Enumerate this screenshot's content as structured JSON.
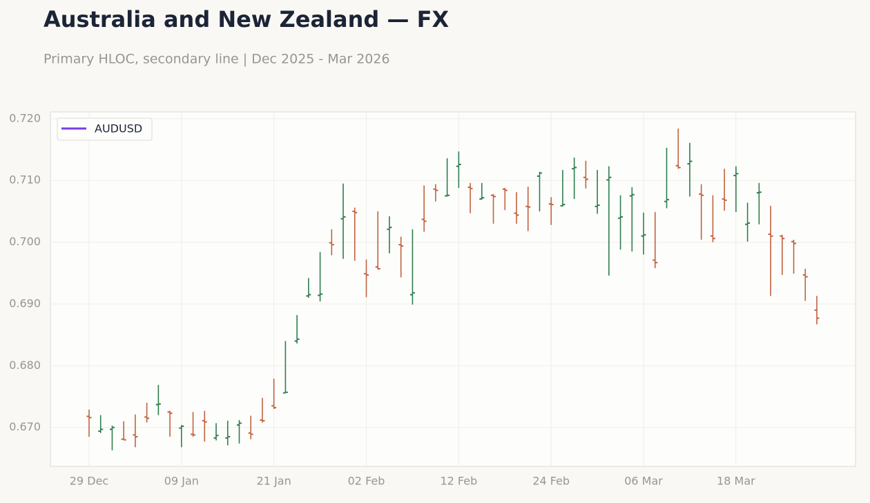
{
  "chart_data": {
    "type": "ohlc",
    "title": "Australia and New Zealand — FX",
    "subtitle": "Primary HLOC, secondary line | Dec 2025 - Mar 2026",
    "categories": [
      "29 Dec",
      null,
      null,
      null,
      null,
      null,
      null,
      null,
      "09 Jan",
      null,
      null,
      null,
      null,
      null,
      null,
      null,
      "21 Jan",
      null,
      null,
      null,
      null,
      null,
      null,
      null,
      "02 Feb",
      null,
      null,
      null,
      null,
      null,
      null,
      null,
      "12 Feb",
      null,
      null,
      null,
      null,
      null,
      null,
      null,
      "24 Feb",
      null,
      null,
      null,
      null,
      null,
      null,
      null,
      "06 Mar",
      null,
      null,
      null,
      null,
      null,
      null,
      null,
      "18 Mar",
      null,
      null,
      null,
      null,
      null,
      null,
      null
    ],
    "series": [
      {
        "name": "AUDUSD",
        "color": "#7c3aed",
        "up_color": "#2e7d4f",
        "down_color": "#c0623e",
        "open": [
          0.6718,
          0.6694,
          0.6697,
          0.6681,
          0.6688,
          0.6717,
          0.6737,
          0.6725,
          0.6699,
          0.6689,
          0.6711,
          0.6683,
          0.6683,
          0.6704,
          0.6691,
          0.6712,
          0.6735,
          0.6756,
          0.684,
          0.6913,
          0.6914,
          0.6999,
          0.7038,
          0.705,
          0.6949,
          0.696,
          0.7021,
          0.6996,
          0.6915,
          0.7037,
          0.7086,
          0.7075,
          0.7123,
          0.7089,
          0.707,
          0.7076,
          0.7086,
          0.7047,
          0.7058,
          0.7107,
          0.7062,
          0.7059,
          0.7119,
          0.7105,
          0.7058,
          0.7101,
          0.7039,
          0.7075,
          0.701,
          0.6971,
          0.7066,
          0.7124,
          0.7127,
          0.7078,
          0.701,
          0.707,
          0.7108,
          0.7029,
          0.708,
          0.7013,
          0.701,
          0.7001,
          0.6947,
          0.689
        ],
        "high": [
          0.6729,
          0.672,
          0.6703,
          0.671,
          0.6721,
          0.674,
          0.6769,
          0.6727,
          0.6704,
          0.6725,
          0.6727,
          0.6707,
          0.6711,
          0.6712,
          0.6719,
          0.6748,
          0.6779,
          0.684,
          0.6882,
          0.6942,
          0.6984,
          0.7021,
          0.7095,
          0.7056,
          0.6972,
          0.705,
          0.7042,
          0.7009,
          0.7021,
          0.7092,
          0.7094,
          0.7136,
          0.7147,
          0.7096,
          0.7096,
          0.7078,
          0.7088,
          0.7081,
          0.709,
          0.7114,
          0.7073,
          0.7117,
          0.7137,
          0.7132,
          0.7117,
          0.7123,
          0.7076,
          0.7089,
          0.7048,
          0.7049,
          0.7153,
          0.7184,
          0.7161,
          0.7094,
          0.7076,
          0.7119,
          0.7123,
          0.7064,
          0.7096,
          0.7059,
          0.7012,
          0.7004,
          0.6957,
          0.6913
        ],
        "low": [
          0.6685,
          0.6691,
          0.6663,
          0.668,
          0.6668,
          0.6708,
          0.672,
          0.6685,
          0.6668,
          0.6685,
          0.6677,
          0.6679,
          0.6671,
          0.6674,
          0.6681,
          0.6708,
          0.673,
          0.6756,
          0.6836,
          0.691,
          0.6904,
          0.6979,
          0.6973,
          0.697,
          0.6911,
          0.6956,
          0.6982,
          0.6943,
          0.6899,
          0.7017,
          0.7066,
          0.7074,
          0.7088,
          0.7047,
          0.7069,
          0.703,
          0.7052,
          0.703,
          0.7018,
          0.705,
          0.7028,
          0.7058,
          0.707,
          0.7087,
          0.7046,
          0.6946,
          0.6988,
          0.6985,
          0.698,
          0.6958,
          0.7055,
          0.7119,
          0.7074,
          0.7004,
          0.7,
          0.7051,
          0.7049,
          0.7001,
          0.7029,
          0.6913,
          0.6947,
          0.6949,
          0.6905,
          0.6867
        ],
        "close": [
          0.6716,
          0.6697,
          0.67,
          0.668,
          0.6685,
          0.6715,
          0.6738,
          0.6723,
          0.6702,
          0.6688,
          0.6709,
          0.6687,
          0.6685,
          0.6707,
          0.6689,
          0.6711,
          0.6732,
          0.6757,
          0.6843,
          0.6915,
          0.6916,
          0.6996,
          0.7041,
          0.7048,
          0.6947,
          0.6957,
          0.7024,
          0.6994,
          0.6918,
          0.7034,
          0.7084,
          0.7076,
          0.7126,
          0.7087,
          0.7072,
          0.7074,
          0.7084,
          0.7044,
          0.7057,
          0.7112,
          0.7061,
          0.7061,
          0.7121,
          0.7102,
          0.706,
          0.7105,
          0.7041,
          0.7077,
          0.7012,
          0.6967,
          0.7069,
          0.7121,
          0.7131,
          0.7076,
          0.7006,
          0.7068,
          0.7111,
          0.7031,
          0.7081,
          0.701,
          0.7006,
          0.6998,
          0.6944,
          0.6877
        ]
      }
    ],
    "ylim": [
      0.6637,
      0.7211
    ],
    "yticks": [
      {
        "value": 0.67,
        "label": "0.670"
      },
      {
        "value": 0.68,
        "label": "0.680"
      },
      {
        "value": 0.69,
        "label": "0.690"
      },
      {
        "value": 0.7,
        "label": "0.700"
      },
      {
        "value": 0.71,
        "label": "0.710"
      },
      {
        "value": 0.72,
        "label": "0.720"
      }
    ],
    "grid": true,
    "legend": "upper left"
  }
}
